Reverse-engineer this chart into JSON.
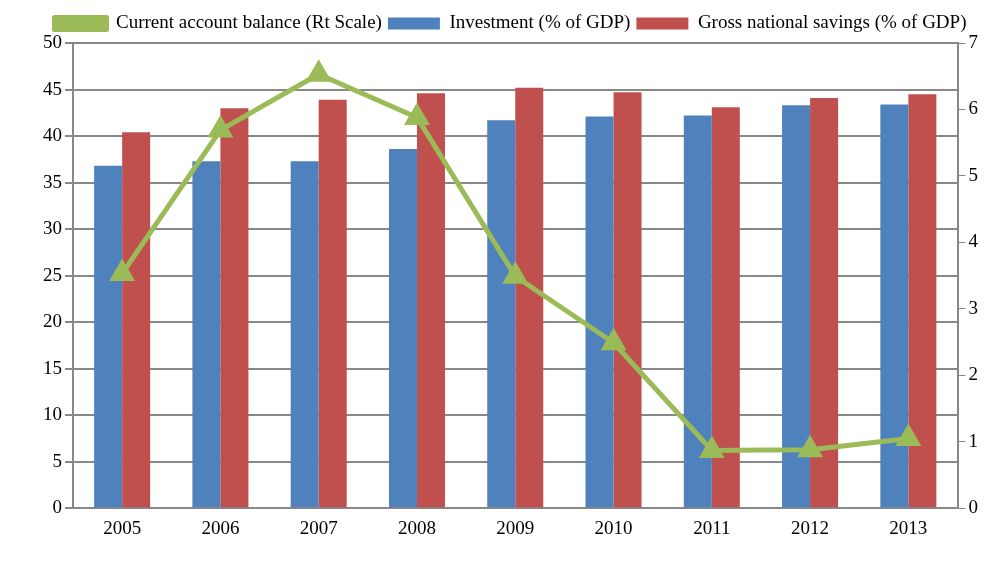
{
  "chart_data": {
    "type": "bar",
    "categories": [
      "2005",
      "2006",
      "2007",
      "2008",
      "2009",
      "2010",
      "2011",
      "2012",
      "2013"
    ],
    "series": [
      {
        "name": "Investment (% of GDP)",
        "color": "#4f81bd",
        "values": [
          36.8,
          37.3,
          37.3,
          38.6,
          41.7,
          42.1,
          42.2,
          43.3,
          43.4
        ]
      },
      {
        "name": "Gross national savings (% of GDP)",
        "color": "#c0504d",
        "values": [
          40.4,
          43.0,
          43.9,
          44.6,
          45.2,
          44.7,
          43.1,
          44.1,
          44.5
        ]
      },
      {
        "name": "Current account balance (Rt Scale)",
        "type": "line",
        "axis": "y2",
        "color": "#9bbb59",
        "marker": "triangle",
        "values": [
          3.53,
          5.69,
          6.53,
          5.88,
          3.49,
          2.49,
          0.87,
          0.88,
          1.05
        ]
      }
    ],
    "ylim": [
      0,
      50
    ],
    "yticks": [
      0,
      5,
      10,
      15,
      20,
      25,
      30,
      35,
      40,
      45,
      50
    ],
    "y2lim": [
      0,
      7
    ],
    "y2ticks": [
      0,
      1,
      2,
      3,
      4,
      5,
      6,
      7
    ],
    "grid": "y",
    "legend": "top"
  }
}
